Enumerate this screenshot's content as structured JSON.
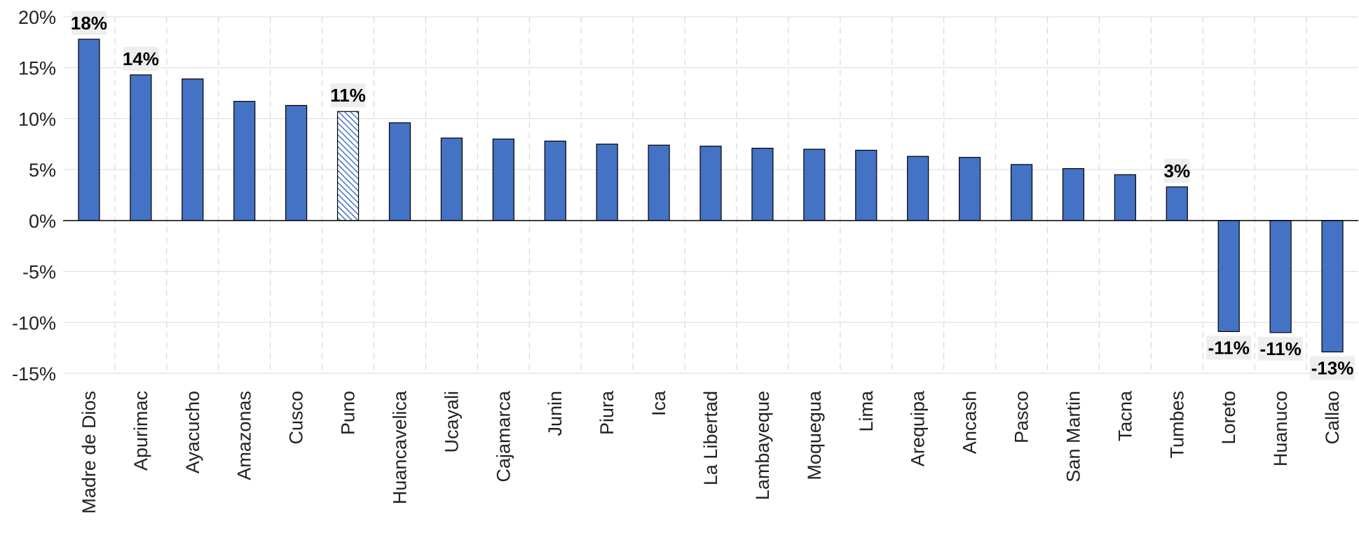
{
  "chart_data": {
    "type": "bar",
    "title": "",
    "xlabel": "",
    "ylabel": "",
    "ylim": [
      -15,
      20
    ],
    "yticks": [
      20,
      15,
      10,
      5,
      0,
      -5,
      -10,
      -15
    ],
    "ytick_suffix": "%",
    "grid": true,
    "legend": "none",
    "categories": [
      "Madre de Dios",
      "Apurimac",
      "Ayacucho",
      "Amazonas",
      "Cusco",
      "Puno",
      "Huancavelica",
      "Ucayali",
      "Cajamarca",
      "Junin",
      "Piura",
      "Ica",
      "La Libertad",
      "Lambayeque",
      "Moquegua",
      "Lima",
      "Arequipa",
      "Ancash",
      "Pasco",
      "San Martin",
      "Tacna",
      "Tumbes",
      "Loreto",
      "Huanuco",
      "Callao"
    ],
    "values": [
      17.8,
      14.3,
      13.9,
      11.7,
      11.3,
      10.7,
      9.6,
      8.1,
      8.0,
      7.8,
      7.5,
      7.4,
      7.3,
      7.1,
      7.0,
      6.9,
      6.3,
      6.2,
      5.5,
      5.1,
      4.5,
      3.3,
      -10.9,
      -11.0,
      -12.9
    ],
    "data_labels": {
      "0": "18%",
      "1": "14%",
      "5": "11%",
      "21": "3%",
      "22": "-11%",
      "23": "-11%",
      "24": "-13%"
    },
    "highlighted_category": "Puno",
    "colors": {
      "bar": "#4472C4",
      "bar_outline": "#000000",
      "hatch": "#4472C4",
      "grid": "#d9d9d9",
      "label_box": "#eeeeee"
    }
  }
}
